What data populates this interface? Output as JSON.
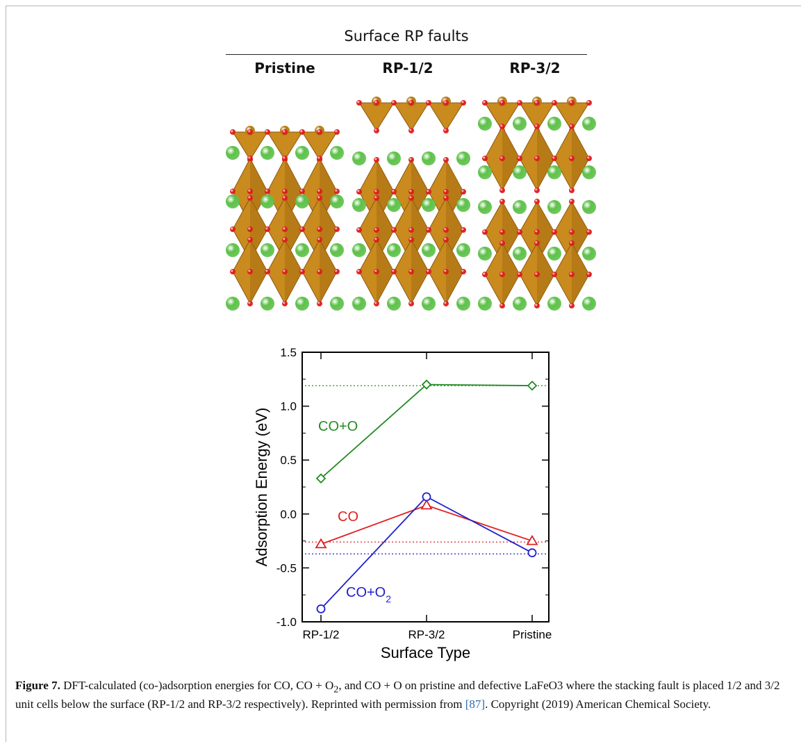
{
  "panel": {
    "title": "Surface RP faults",
    "columns": [
      "Pristine",
      "RP-1/2",
      "RP-3/2"
    ]
  },
  "colors": {
    "octahedron": "#c98a1e",
    "oxygen": "#e01b1b",
    "lanthanum": "#5ec14a",
    "surface_fe": "#b47a12",
    "co_o": "#228b22",
    "co": "#e02020",
    "co_o2": "#2020cc"
  },
  "chart_data": {
    "type": "line",
    "xlabel": "Surface Type",
    "ylabel": "Adsorption Energy (eV)",
    "categories": [
      "RP-1/2",
      "RP-3/2",
      "Pristine"
    ],
    "ylim": [
      -1.0,
      1.5
    ],
    "yticks": [
      "1.5",
      "1.0",
      "0.5",
      "0.0",
      "-0.5",
      "-1.0"
    ],
    "series": [
      {
        "name": "CO+O",
        "values": [
          0.33,
          1.2,
          1.19
        ],
        "marker": "diamond",
        "reference": 1.19
      },
      {
        "name": "CO",
        "values": [
          -0.28,
          0.08,
          -0.25
        ],
        "marker": "triangle",
        "reference": -0.26
      },
      {
        "name": "CO+O",
        "subscript": "2",
        "values": [
          -0.88,
          0.16,
          -0.36
        ],
        "marker": "circle",
        "reference": -0.37
      }
    ]
  },
  "caption": {
    "label": "Figure 7.",
    "text1": " DFT-calculated (co-)adsorption energies for CO, CO + O",
    "sub": "2",
    "text2": ", and CO + O on pristine and defective LaFeO3 where the stacking fault is placed 1/2 and 3/2 unit cells below the surface (RP-1/2 and RP-3/2 respectively). Reprinted with permission from ",
    "ref": "[87]",
    "text3": ". Copyright (2019) American Chemical Society."
  }
}
